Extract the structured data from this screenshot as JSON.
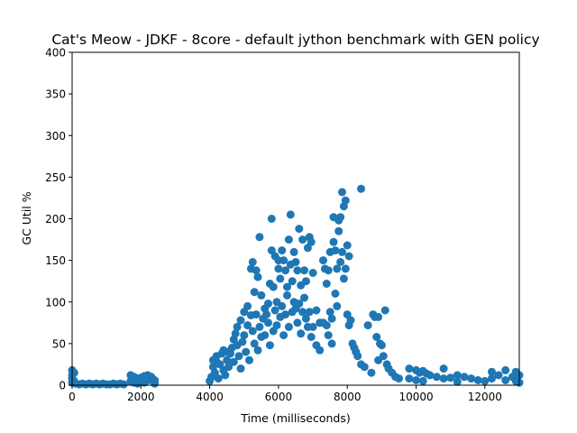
{
  "chart_data": {
    "type": "scatter",
    "title": "Cat's Meow - JDKF - 8core -  default jython benchmark with GEN policy",
    "xlabel": "Time (milliseconds)",
    "ylabel": "GC Util %",
    "xlim": [
      0,
      13000
    ],
    "ylim": [
      0,
      400
    ],
    "xticks": [
      0,
      2000,
      4000,
      6000,
      8000,
      10000,
      12000
    ],
    "yticks": [
      0,
      50,
      100,
      150,
      200,
      250,
      300,
      350,
      400
    ],
    "grid": false,
    "legend": "none",
    "marker_color": "#1f77b4",
    "series": [
      {
        "points": [
          [
            0,
            18
          ],
          [
            0,
            12
          ],
          [
            0,
            8
          ],
          [
            0,
            3
          ],
          [
            60,
            15
          ],
          [
            60,
            5
          ],
          [
            100,
            2
          ],
          [
            200,
            1
          ],
          [
            300,
            2
          ],
          [
            400,
            1
          ],
          [
            500,
            2
          ],
          [
            600,
            1
          ],
          [
            700,
            2
          ],
          [
            800,
            1
          ],
          [
            900,
            2
          ],
          [
            1000,
            1
          ],
          [
            1100,
            1
          ],
          [
            1200,
            2
          ],
          [
            1300,
            1
          ],
          [
            1400,
            2
          ],
          [
            1500,
            1
          ],
          [
            1700,
            12
          ],
          [
            1700,
            5
          ],
          [
            1800,
            10
          ],
          [
            1800,
            3
          ],
          [
            1900,
            8
          ],
          [
            1900,
            2
          ],
          [
            2000,
            9
          ],
          [
            2000,
            4
          ],
          [
            2100,
            11
          ],
          [
            2100,
            3
          ],
          [
            2200,
            12
          ],
          [
            2200,
            6
          ],
          [
            2250,
            9
          ],
          [
            2300,
            10
          ],
          [
            2350,
            5
          ],
          [
            2400,
            6
          ],
          [
            2400,
            2
          ],
          [
            4000,
            5
          ],
          [
            4050,
            10
          ],
          [
            4100,
            22
          ],
          [
            4100,
            30
          ],
          [
            4150,
            15
          ],
          [
            4200,
            28
          ],
          [
            4200,
            35
          ],
          [
            4250,
            8
          ],
          [
            4300,
            25
          ],
          [
            4350,
            38
          ],
          [
            4400,
            18
          ],
          [
            4400,
            42
          ],
          [
            4450,
            12
          ],
          [
            4500,
            40
          ],
          [
            4500,
            30
          ],
          [
            4550,
            22
          ],
          [
            4600,
            38
          ],
          [
            4650,
            45
          ],
          [
            4700,
            28
          ],
          [
            4700,
            55
          ],
          [
            4750,
            62
          ],
          [
            4800,
            70
          ],
          [
            4800,
            48
          ],
          [
            4850,
            35
          ],
          [
            4900,
            78
          ],
          [
            4900,
            20
          ],
          [
            4950,
            52
          ],
          [
            5000,
            88
          ],
          [
            5000,
            60
          ],
          [
            5050,
            40
          ],
          [
            5100,
            95
          ],
          [
            5100,
            72
          ],
          [
            5150,
            30
          ],
          [
            5200,
            84
          ],
          [
            5200,
            140
          ],
          [
            5250,
            148
          ],
          [
            5250,
            65
          ],
          [
            5300,
            112
          ],
          [
            5300,
            50
          ],
          [
            5350,
            138
          ],
          [
            5350,
            85
          ],
          [
            5400,
            130
          ],
          [
            5400,
            42
          ],
          [
            5450,
            178
          ],
          [
            5450,
            70
          ],
          [
            5500,
            108
          ],
          [
            5500,
            58
          ],
          [
            5550,
            80
          ],
          [
            5600,
            60
          ],
          [
            5600,
            92
          ],
          [
            5650,
            85
          ],
          [
            5700,
            75
          ],
          [
            5700,
            98
          ],
          [
            5750,
            122
          ],
          [
            5750,
            48
          ],
          [
            5800,
            200
          ],
          [
            5800,
            162
          ],
          [
            5850,
            118
          ],
          [
            5850,
            65
          ],
          [
            5900,
            155
          ],
          [
            5900,
            90
          ],
          [
            5950,
            100
          ],
          [
            5950,
            72
          ],
          [
            6000,
            140
          ],
          [
            6000,
            150
          ],
          [
            6050,
            128
          ],
          [
            6050,
            82
          ],
          [
            6100,
            162
          ],
          [
            6100,
            95
          ],
          [
            6150,
            150
          ],
          [
            6150,
            60
          ],
          [
            6200,
            138
          ],
          [
            6200,
            85
          ],
          [
            6250,
            118
          ],
          [
            6250,
            108
          ],
          [
            6300,
            175
          ],
          [
            6300,
            70
          ],
          [
            6350,
            205
          ],
          [
            6350,
            145
          ],
          [
            6400,
            125
          ],
          [
            6400,
            88
          ],
          [
            6450,
            160
          ],
          [
            6450,
            100
          ],
          [
            6500,
            148
          ],
          [
            6500,
            92
          ],
          [
            6550,
            138
          ],
          [
            6550,
            75
          ],
          [
            6600,
            188
          ],
          [
            6600,
            98
          ],
          [
            6650,
            120
          ],
          [
            6650,
            62
          ],
          [
            6700,
            175
          ],
          [
            6700,
            88
          ],
          [
            6750,
            138
          ],
          [
            6750,
            105
          ],
          [
            6800,
            125
          ],
          [
            6800,
            80
          ],
          [
            6850,
            165
          ],
          [
            6850,
            70
          ],
          [
            6900,
            178
          ],
          [
            6900,
            88
          ],
          [
            6950,
            172
          ],
          [
            6950,
            58
          ],
          [
            7000,
            135
          ],
          [
            7000,
            70
          ],
          [
            7100,
            90
          ],
          [
            7100,
            48
          ],
          [
            7200,
            75
          ],
          [
            7200,
            42
          ],
          [
            7300,
            150
          ],
          [
            7300,
            75
          ],
          [
            7350,
            140
          ],
          [
            7400,
            122
          ],
          [
            7400,
            72
          ],
          [
            7450,
            138
          ],
          [
            7450,
            60
          ],
          [
            7500,
            160
          ],
          [
            7500,
            88
          ],
          [
            7550,
            80
          ],
          [
            7550,
            50
          ],
          [
            7600,
            202
          ],
          [
            7600,
            172
          ],
          [
            7650,
            162
          ],
          [
            7650,
            110
          ],
          [
            7700,
            140
          ],
          [
            7700,
            95
          ],
          [
            7750,
            198
          ],
          [
            7750,
            185
          ],
          [
            7800,
            202
          ],
          [
            7800,
            148
          ],
          [
            7850,
            232
          ],
          [
            7850,
            160
          ],
          [
            7900,
            215
          ],
          [
            7900,
            128
          ],
          [
            7950,
            222
          ],
          [
            7950,
            140
          ],
          [
            8000,
            168
          ],
          [
            8000,
            85
          ],
          [
            8050,
            155
          ],
          [
            8050,
            72
          ],
          [
            8100,
            78
          ],
          [
            8150,
            50
          ],
          [
            8200,
            45
          ],
          [
            8250,
            40
          ],
          [
            8300,
            35
          ],
          [
            8400,
            236
          ],
          [
            8400,
            25
          ],
          [
            8500,
            22
          ],
          [
            8600,
            72
          ],
          [
            8700,
            15
          ],
          [
            8750,
            85
          ],
          [
            8800,
            82
          ],
          [
            8850,
            58
          ],
          [
            8900,
            82
          ],
          [
            8900,
            30
          ],
          [
            8950,
            50
          ],
          [
            9000,
            48
          ],
          [
            9050,
            35
          ],
          [
            9100,
            90
          ],
          [
            9150,
            25
          ],
          [
            9200,
            20
          ],
          [
            9300,
            15
          ],
          [
            9400,
            10
          ],
          [
            9500,
            8
          ],
          [
            9800,
            20
          ],
          [
            9800,
            8
          ],
          [
            10000,
            18
          ],
          [
            10000,
            6
          ],
          [
            10100,
            15
          ],
          [
            10200,
            17
          ],
          [
            10200,
            5
          ],
          [
            10300,
            14
          ],
          [
            10400,
            12
          ],
          [
            10600,
            10
          ],
          [
            10800,
            20
          ],
          [
            10800,
            8
          ],
          [
            11000,
            9
          ],
          [
            11200,
            12
          ],
          [
            11200,
            4
          ],
          [
            11400,
            10
          ],
          [
            11600,
            8
          ],
          [
            11800,
            6
          ],
          [
            12000,
            5
          ],
          [
            12200,
            16
          ],
          [
            12200,
            8
          ],
          [
            12400,
            12
          ],
          [
            12600,
            18
          ],
          [
            12600,
            6
          ],
          [
            12800,
            10
          ],
          [
            12900,
            16
          ],
          [
            12900,
            5
          ],
          [
            13000,
            12
          ],
          [
            13000,
            3
          ]
        ]
      }
    ]
  }
}
